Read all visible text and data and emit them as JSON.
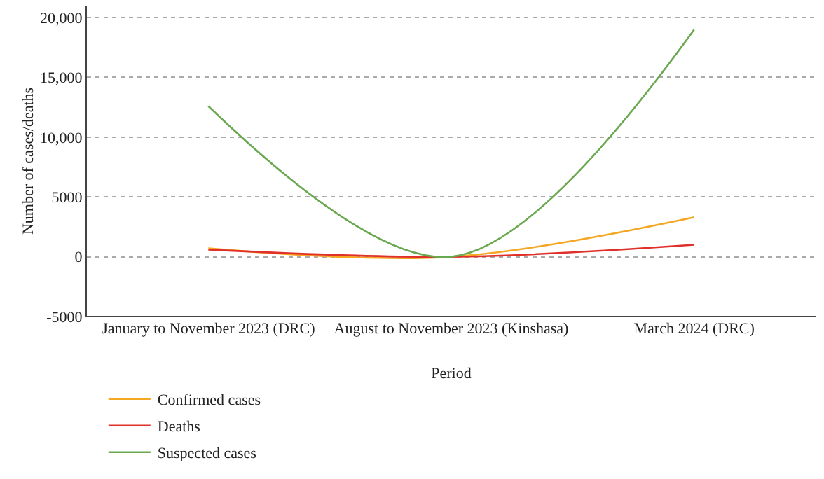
{
  "chart_data": {
    "type": "line",
    "xlabel": "Period",
    "ylabel": "Number of cases/deaths",
    "categories": [
      "January to November 2023 (DRC)",
      "August to November 2023 (Kinshasa)",
      "March 2024 (DRC)"
    ],
    "series": [
      {
        "name": "Confirmed cases",
        "color": "#f5a623",
        "values": [
          700,
          0,
          3300
        ]
      },
      {
        "name": "Deaths",
        "color": "#e0302a",
        "values": [
          600,
          0,
          1000
        ]
      },
      {
        "name": "Suspected cases",
        "color": "#6aa84f",
        "values": [
          12600,
          0,
          19000
        ]
      }
    ],
    "ylim": [
      -5000,
      21000
    ],
    "yticks": [
      -5000,
      0,
      5000,
      {
        "value": 10000,
        "label": "10,000"
      },
      {
        "value": 15000,
        "label": "15,000"
      },
      {
        "value": 20000,
        "label": "20,000"
      }
    ],
    "grid": "y",
    "legend": "bottom",
    "line_style": "solid",
    "marker": "none"
  }
}
